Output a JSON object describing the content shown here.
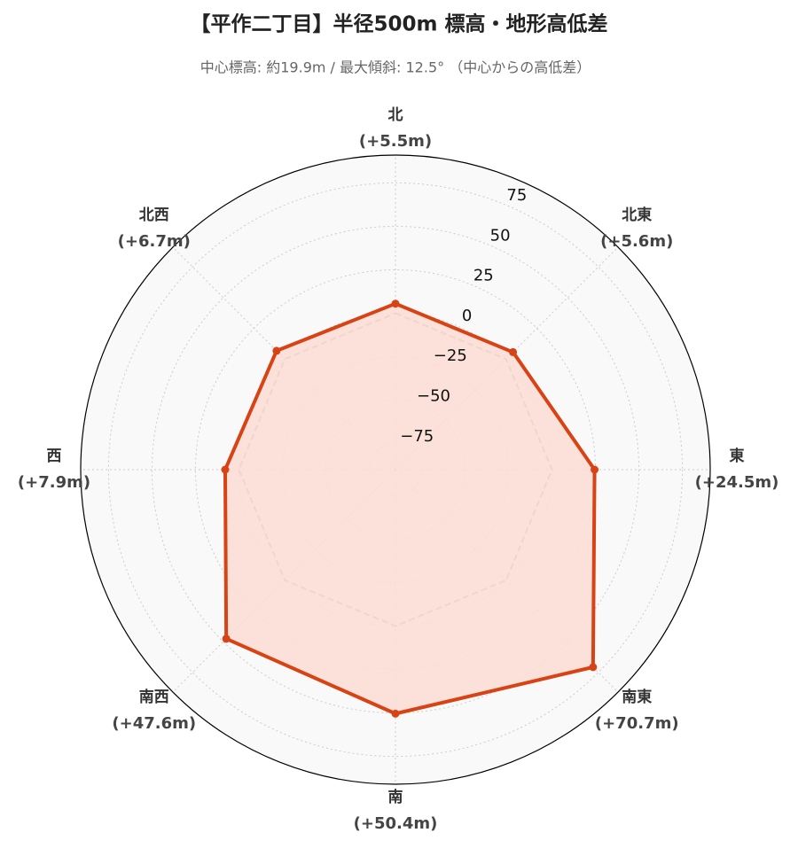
{
  "chart_data": {
    "type": "radar",
    "title": "【平作二丁目】半径500m 標高・地形高低差",
    "subtitle": "中心標高: 約19.9m / 最大傾斜: 12.5° （中心からの高低差）",
    "categories": [
      "北",
      "北東",
      "東",
      "南東",
      "南",
      "南西",
      "西",
      "北西"
    ],
    "values": [
      5.5,
      5.6,
      24.5,
      70.7,
      50.4,
      47.6,
      7.9,
      6.7
    ],
    "value_labels": [
      "(+5.5m)",
      "(+5.6m)",
      "(+24.5m)",
      "(+70.7m)",
      "(+50.4m)",
      "(+47.6m)",
      "(+7.9m)",
      "(+6.7m)"
    ],
    "color": "#d84315",
    "fill_color": "#fbded6",
    "reference_line": 0,
    "reference_color": "#888888",
    "ylim": [
      -90,
      91
    ],
    "yticks": [
      {
        "value": -75,
        "label": "−75"
      },
      {
        "value": -50,
        "label": "−50"
      },
      {
        "value": -25,
        "label": "−25"
      },
      0,
      25,
      50,
      75
    ],
    "grid": true
  }
}
